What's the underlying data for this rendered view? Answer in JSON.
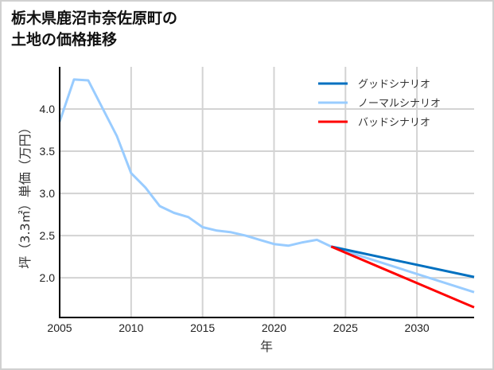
{
  "chart_data": {
    "type": "line",
    "title": "栃木県鹿沼市奈佐原町の\n土地の価格推移",
    "xlabel": "年",
    "ylabel": "坪（3.3㎡）単価（万円）",
    "xlim": [
      2005,
      2034
    ],
    "ylim": [
      1.53,
      4.5
    ],
    "x_ticks": [
      "2005",
      "2010",
      "2015",
      "2020",
      "2025",
      "2030"
    ],
    "y_ticks": [
      "2.0",
      "2.5",
      "3.0",
      "3.5",
      "4.0"
    ],
    "grid": true,
    "legend_position": "upper right",
    "series": [
      {
        "name": "グッドシナリオ",
        "color": "#0070c0",
        "x": [
          2024,
          2034
        ],
        "values": [
          2.37,
          2.01
        ]
      },
      {
        "name": "ノーマルシナリオ",
        "color": "#99ccff",
        "x": [
          2005,
          2006,
          2007,
          2008,
          2009,
          2010,
          2011,
          2012,
          2013,
          2014,
          2015,
          2016,
          2017,
          2018,
          2019,
          2020,
          2021,
          2022,
          2023,
          2024,
          2034
        ],
        "values": [
          3.85,
          4.35,
          4.34,
          4.01,
          3.68,
          3.24,
          3.07,
          2.85,
          2.77,
          2.72,
          2.6,
          2.56,
          2.54,
          2.5,
          2.45,
          2.4,
          2.38,
          2.42,
          2.45,
          2.37,
          1.83
        ]
      },
      {
        "name": "バッドシナリオ",
        "color": "#ff0000",
        "x": [
          2024,
          2034
        ],
        "values": [
          2.37,
          1.65
        ]
      }
    ]
  }
}
